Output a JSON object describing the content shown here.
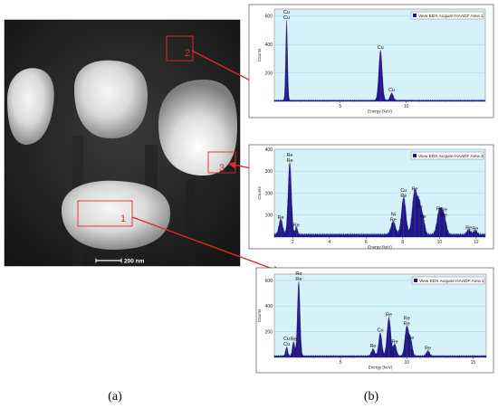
{
  "panel_labels": {
    "a": "(a)",
    "b": "(b)"
  },
  "micrograph": {
    "scale_bar": "200 nm",
    "regions": [
      "1",
      "2",
      "3"
    ]
  },
  "colors": {
    "plot_bg": "#d6f1f9",
    "grid": "#9fd9ea",
    "spectrum": "#1b1a8c",
    "peak_line": "#d33a3a",
    "arrow": "#e52a23"
  },
  "chart_data": [
    {
      "type": "area",
      "legend": "View EDX Acquire HAADF Area 1",
      "legend_position": "top-right",
      "xlabel": "Energy (keV)",
      "ylabel": "Counts",
      "xlim": [
        0,
        16
      ],
      "ylim": [
        0,
        650
      ],
      "xticks": [
        "5",
        "10"
      ],
      "yticks": [
        "200",
        "400",
        "600"
      ],
      "grid": true,
      "peaks": [
        {
          "x": 0.93,
          "y": 560,
          "w": 0.07,
          "labels": [
            "Cu",
            "Cu"
          ]
        },
        {
          "x": 8.05,
          "y": 350,
          "w": 0.13,
          "labels": [
            "Cu"
          ]
        },
        {
          "x": 8.9,
          "y": 50,
          "w": 0.12,
          "labels": [
            "Cu"
          ]
        }
      ],
      "baseline": 8
    },
    {
      "type": "area",
      "legend": "View EDX Acquire HAADF Area 3",
      "legend_position": "top-right",
      "xlabel": "Energy (keV)",
      "ylabel": "Counts",
      "xlim": [
        1,
        12.5
      ],
      "ylim": [
        0,
        400
      ],
      "xticks": [
        "2",
        "4",
        "6",
        "8",
        "10",
        "12"
      ],
      "yticks": [
        "100",
        "200",
        "300",
        "400"
      ],
      "grid": true,
      "peaks": [
        {
          "x": 1.35,
          "y": 70,
          "w": 0.1,
          "labels": [
            "Re"
          ]
        },
        {
          "x": 1.84,
          "y": 330,
          "w": 0.09,
          "labels": [
            "Re",
            "Re"
          ]
        },
        {
          "x": 2.2,
          "y": 35,
          "w": 0.06,
          "labels": [
            "Re"
          ]
        },
        {
          "x": 7.48,
          "y": 60,
          "w": 0.12,
          "labels": [
            "Ni",
            "Re"
          ]
        },
        {
          "x": 8.05,
          "y": 170,
          "w": 0.12,
          "labels": [
            "Cu",
            "Re"
          ]
        },
        {
          "x": 8.65,
          "y": 200,
          "w": 0.13,
          "labels": [
            "Re"
          ]
        },
        {
          "x": 8.9,
          "y": 120,
          "w": 0.1,
          "labels": [
            "Cu"
          ]
        },
        {
          "x": 9.1,
          "y": 75,
          "w": 0.1,
          "labels": [
            "Re"
          ]
        },
        {
          "x": 10.0,
          "y": 110,
          "w": 0.13,
          "labels": [
            "Re"
          ]
        },
        {
          "x": 10.25,
          "y": 80,
          "w": 0.12,
          "labels": [
            "Re",
            "Re"
          ]
        },
        {
          "x": 11.6,
          "y": 22,
          "w": 0.1,
          "labels": [
            "Re"
          ]
        },
        {
          "x": 11.95,
          "y": 18,
          "w": 0.1,
          "labels": [
            "Re"
          ]
        }
      ],
      "baseline": 12
    },
    {
      "type": "area",
      "legend": "View EDX Acquire HAADF Area 1",
      "legend_position": "top-right",
      "xlabel": "Energy (keV)",
      "ylabel": "Counts",
      "xlim": [
        0,
        16
      ],
      "ylim": [
        0,
        650
      ],
      "xticks": [
        "5",
        "10",
        "15"
      ],
      "yticks": [
        "200",
        "400",
        "600"
      ],
      "grid": true,
      "peaks": [
        {
          "x": 0.93,
          "y": 70,
          "w": 0.08,
          "labels": [
            "Cu",
            "Cu"
          ]
        },
        {
          "x": 1.45,
          "y": 110,
          "w": 0.09,
          "labels": [
            "Re"
          ]
        },
        {
          "x": 1.84,
          "y": 580,
          "w": 0.1,
          "labels": [
            "Re",
            "Re"
          ]
        },
        {
          "x": 7.45,
          "y": 55,
          "w": 0.12,
          "labels": [
            "Re"
          ]
        },
        {
          "x": 8.0,
          "y": 180,
          "w": 0.12,
          "labels": [
            "Cu"
          ]
        },
        {
          "x": 8.65,
          "y": 300,
          "w": 0.14,
          "labels": [
            "Re"
          ]
        },
        {
          "x": 9.1,
          "y": 90,
          "w": 0.12,
          "labels": [
            "Re"
          ]
        },
        {
          "x": 10.0,
          "y": 230,
          "w": 0.14,
          "labels": [
            "Re",
            "Re"
          ]
        },
        {
          "x": 10.3,
          "y": 120,
          "w": 0.12,
          "labels": [
            "Re"
          ]
        },
        {
          "x": 11.6,
          "y": 40,
          "w": 0.12,
          "labels": [
            "Re"
          ]
        }
      ],
      "baseline": 12
    }
  ]
}
